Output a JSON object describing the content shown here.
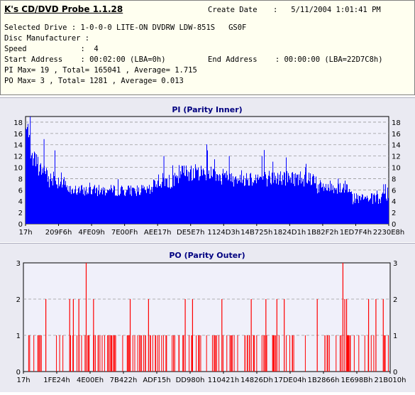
{
  "header": {
    "app_title": "K's CD/DVD Probe 1.1.28",
    "create_date_label": "Create Date",
    "create_date_value": ":   5/11/2004 1:01:41 PM",
    "selected_drive": "Selected Drive : 1-0-0-0 LITE-ON DVDRW LDW-851S   GS0F",
    "disc_manufacturer": "Disc Manufacturer :",
    "speed": "Speed            :  4",
    "start_address": "Start Address    : 00:02:00 (LBA=0h)",
    "end_address": "End Address    : 00:00:00 (LBA=22D7C8h)",
    "pi_stats": "PI Max= 19 , Total= 165041 , Average= 1.715",
    "po_stats": "PO Max= 3 , Total= 1281 , Average= 0.013"
  },
  "chart_data": [
    {
      "type": "bar",
      "title": "PI (Parity Inner)",
      "color": "#0000ff",
      "ylim": [
        0,
        19
      ],
      "yticks": [
        0,
        2,
        4,
        6,
        8,
        10,
        12,
        14,
        16,
        18
      ],
      "xticks": [
        "17h",
        "209F6h",
        "4FE09h",
        "7E00Fh",
        "AEE17h",
        "DE5E7h",
        "1124D3h",
        "14B725h",
        "1824D1h",
        "1B82F2h",
        "1ED7F4h",
        "2230E8h"
      ],
      "segments": [
        {
          "range": [
            0.0,
            0.01
          ],
          "base": 16,
          "spread": 3
        },
        {
          "range": [
            0.01,
            0.03
          ],
          "base": 11,
          "spread": 3
        },
        {
          "range": [
            0.03,
            0.06
          ],
          "base": 9,
          "spread": 3
        },
        {
          "range": [
            0.06,
            0.11
          ],
          "base": 7,
          "spread": 3
        },
        {
          "range": [
            0.11,
            0.35
          ],
          "base": 5.5,
          "spread": 2
        },
        {
          "range": [
            0.35,
            0.42
          ],
          "base": 7,
          "spread": 3
        },
        {
          "range": [
            0.42,
            0.53
          ],
          "base": 8.5,
          "spread": 3
        },
        {
          "range": [
            0.53,
            0.8
          ],
          "base": 7.5,
          "spread": 3
        },
        {
          "range": [
            0.8,
            0.9
          ],
          "base": 6,
          "spread": 2.5
        },
        {
          "range": [
            0.9,
            1.0
          ],
          "base": 4,
          "spread": 2
        }
      ],
      "peaks": [
        {
          "x": 0.012,
          "value": 19
        },
        {
          "x": 0.05,
          "value": 15
        },
        {
          "x": 0.08,
          "value": 13
        },
        {
          "x": 0.38,
          "value": 12
        },
        {
          "x": 0.5,
          "value": 13
        },
        {
          "x": 0.56,
          "value": 12
        },
        {
          "x": 0.65,
          "value": 12
        },
        {
          "x": 0.68,
          "value": 11
        },
        {
          "x": 0.77,
          "value": 10
        },
        {
          "x": 0.86,
          "value": 8
        },
        {
          "x": 0.985,
          "value": 7
        }
      ]
    },
    {
      "type": "bar",
      "title": "PO (Parity Outer)",
      "color": "#ff0000",
      "ylim": [
        0,
        3
      ],
      "yticks": [
        0,
        1,
        2,
        3
      ],
      "xticks": [
        "17h",
        "1FE24h",
        "4E00Eh",
        "7B422h",
        "ADF15h",
        "DD980h",
        "110421h",
        "14826Dh",
        "17DE04h",
        "1B2866h",
        "1E698Bh",
        "21B010h"
      ],
      "peaks": [
        {
          "x": 0.17,
          "value": 3
        },
        {
          "x": 0.87,
          "value": 3
        },
        {
          "x": 0.06,
          "value": 2
        },
        {
          "x": 0.125,
          "value": 2
        },
        {
          "x": 0.135,
          "value": 2
        },
        {
          "x": 0.15,
          "value": 2
        },
        {
          "x": 0.19,
          "value": 2
        },
        {
          "x": 0.29,
          "value": 2
        },
        {
          "x": 0.34,
          "value": 2
        },
        {
          "x": 0.44,
          "value": 2
        },
        {
          "x": 0.46,
          "value": 2
        },
        {
          "x": 0.54,
          "value": 2
        },
        {
          "x": 0.62,
          "value": 2
        },
        {
          "x": 0.66,
          "value": 2
        },
        {
          "x": 0.69,
          "value": 2
        },
        {
          "x": 0.71,
          "value": 2
        },
        {
          "x": 0.8,
          "value": 2
        },
        {
          "x": 0.875,
          "value": 2
        },
        {
          "x": 0.88,
          "value": 2
        },
        {
          "x": 0.94,
          "value": 2
        },
        {
          "x": 0.96,
          "value": 2
        },
        {
          "x": 0.98,
          "value": 2
        }
      ]
    }
  ]
}
